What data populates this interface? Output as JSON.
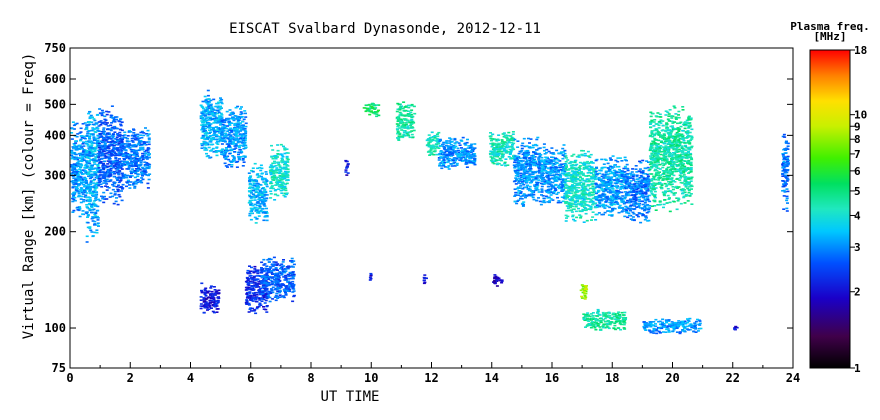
{
  "chart_data": {
    "type": "scatter",
    "title": "EISCAT Svalbard Dynasonde, 2012-12-11",
    "xlabel": "UT TIME",
    "ylabel": "Virtual Range [km] (colour = Freq)",
    "xlim": [
      0,
      24
    ],
    "ylim": [
      75,
      750
    ],
    "yscale": "log",
    "xticks": [
      "0",
      "2",
      "4",
      "6",
      "8",
      "10",
      "12",
      "14",
      "16",
      "18",
      "20",
      "22",
      "24"
    ],
    "yticks": [
      "750",
      "600",
      "500",
      "400",
      "300",
      "200",
      "100",
      "75"
    ],
    "grid": false,
    "colorbar": {
      "title_line1": "Plasma freq.",
      "title_line2": "[MHz]",
      "scale": "log",
      "range": [
        1,
        18
      ],
      "ticks": [
        "18",
        "10",
        "9",
        "8",
        "7",
        "6",
        "5",
        "4",
        "3",
        "2",
        "1"
      ]
    },
    "clusters": [
      {
        "x": [
          0.0,
          0.5
        ],
        "y": [
          220,
          450
        ],
        "f": 3.0
      },
      {
        "x": [
          0.5,
          0.9
        ],
        "y": [
          185,
          520
        ],
        "f": 3.2
      },
      {
        "x": [
          0.9,
          1.7
        ],
        "y": [
          240,
          500
        ],
        "f": 2.6
      },
      {
        "x": [
          1.7,
          2.6
        ],
        "y": [
          270,
          430
        ],
        "f": 2.8
      },
      {
        "x": [
          4.3,
          5.0
        ],
        "y": [
          330,
          560
        ],
        "f": 3.2
      },
      {
        "x": [
          5.0,
          5.8
        ],
        "y": [
          310,
          500
        ],
        "f": 3.0
      },
      {
        "x": [
          5.9,
          6.5
        ],
        "y": [
          210,
          330
        ],
        "f": 3.3
      },
      {
        "x": [
          6.6,
          7.2
        ],
        "y": [
          250,
          380
        ],
        "f": 4.0
      },
      {
        "x": [
          9.1,
          9.2
        ],
        "y": [
          290,
          340
        ],
        "f": 2.0
      },
      {
        "x": [
          9.7,
          10.2
        ],
        "y": [
          460,
          510
        ],
        "f": 5.0
      },
      {
        "x": [
          10.8,
          11.4
        ],
        "y": [
          380,
          520
        ],
        "f": 4.5
      },
      {
        "x": [
          11.8,
          12.2
        ],
        "y": [
          340,
          420
        ],
        "f": 4.2
      },
      {
        "x": [
          12.2,
          13.4
        ],
        "y": [
          310,
          400
        ],
        "f": 3.0
      },
      {
        "x": [
          13.9,
          14.7
        ],
        "y": [
          320,
          420
        ],
        "f": 4.2
      },
      {
        "x": [
          14.7,
          15.6
        ],
        "y": [
          240,
          400
        ],
        "f": 3.0
      },
      {
        "x": [
          15.6,
          16.4
        ],
        "y": [
          240,
          380
        ],
        "f": 3.0
      },
      {
        "x": [
          16.4,
          17.4
        ],
        "y": [
          210,
          370
        ],
        "f": 4.0
      },
      {
        "x": [
          17.4,
          18.4
        ],
        "y": [
          220,
          350
        ],
        "f": 3.1
      },
      {
        "x": [
          18.4,
          19.2
        ],
        "y": [
          210,
          340
        ],
        "f": 2.8
      },
      {
        "x": [
          19.2,
          20.6
        ],
        "y": [
          230,
          500
        ],
        "f": 4.4
      },
      {
        "x": [
          23.6,
          23.8
        ],
        "y": [
          230,
          420
        ],
        "f": 2.8
      },
      {
        "x": [
          4.3,
          4.9
        ],
        "y": [
          110,
          140
        ],
        "f": 2.0
      },
      {
        "x": [
          5.8,
          6.5
        ],
        "y": [
          110,
          160
        ],
        "f": 2.2
      },
      {
        "x": [
          6.3,
          7.4
        ],
        "y": [
          120,
          170
        ],
        "f": 2.6
      },
      {
        "x": [
          9.9,
          10.0
        ],
        "y": [
          140,
          150
        ],
        "f": 2.0
      },
      {
        "x": [
          11.7,
          11.8
        ],
        "y": [
          135,
          150
        ],
        "f": 2.0
      },
      {
        "x": [
          14.0,
          14.3
        ],
        "y": [
          135,
          150
        ],
        "f": 1.9
      },
      {
        "x": [
          16.9,
          17.1
        ],
        "y": [
          120,
          140
        ],
        "f": 8.0
      },
      {
        "x": [
          17.0,
          18.4
        ],
        "y": [
          98,
          115
        ],
        "f": 4.5
      },
      {
        "x": [
          19.0,
          20.9
        ],
        "y": [
          96,
          108
        ],
        "f": 3.0
      },
      {
        "x": [
          22.0,
          22.1
        ],
        "y": [
          99,
          102
        ],
        "f": 2.0
      }
    ]
  }
}
